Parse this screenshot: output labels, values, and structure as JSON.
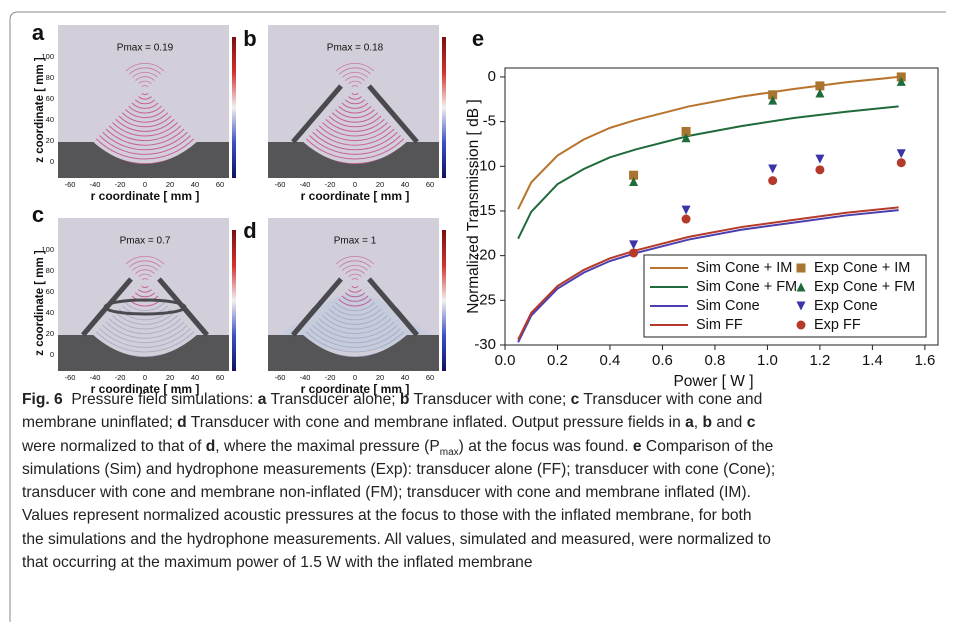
{
  "panels": [
    {
      "label": "a",
      "pmax": "Pmax = 0.19",
      "yticks": [
        0,
        20,
        40,
        60,
        80,
        100
      ],
      "ylabel": "z coordinate [ mm ]",
      "xticks": [
        -60,
        -40,
        -20,
        0,
        20,
        40,
        60
      ],
      "xlabel": "r coordinate [ mm ]"
    },
    {
      "label": "b",
      "pmax": "Pmax = 0.18",
      "xticks": [
        -60,
        -40,
        -20,
        0,
        20,
        40,
        60
      ],
      "xlabel": "r coordinate [ mm ]"
    },
    {
      "label": "c",
      "pmax": "Pmax = 0.7",
      "yticks": [
        0,
        20,
        40,
        60,
        80,
        100
      ],
      "ylabel": "z coordinate [ mm ]",
      "xticks": [
        -60,
        -40,
        -20,
        0,
        20,
        40,
        60
      ],
      "xlabel": "r coordinate [ mm ]"
    },
    {
      "label": "d",
      "pmax": "Pmax = 1",
      "xticks": [
        -60,
        -40,
        -20,
        0,
        20,
        40,
        60
      ],
      "xlabel": "r coordinate [ mm ]"
    }
  ],
  "chart_data": {
    "type": "line",
    "title": "e",
    "x_label": "Power [ W ]",
    "y_label": "Normalized Transmission [ dB ]",
    "xlim": [
      0,
      1.65
    ],
    "ylim": [
      -30,
      1
    ],
    "xticks": [
      {
        "value": 0,
        "label": "0.0"
      },
      0.2,
      0.4,
      0.6,
      0.8,
      {
        "value": 1,
        "label": "1.0"
      },
      1.2,
      1.4,
      1.6
    ],
    "yticks": [
      -30,
      -25,
      -20,
      -15,
      -10,
      -5,
      0
    ],
    "legend": "lower right",
    "series": [
      {
        "name": "Sim Cone + IM",
        "color": "#b8732e",
        "kind": "line",
        "x": [
          0.05,
          0.1,
          0.2,
          0.3,
          0.4,
          0.5,
          0.7,
          0.9,
          1.1,
          1.3,
          1.5
        ],
        "values": [
          -14.8,
          -11.8,
          -8.8,
          -7.0,
          -5.7,
          -4.8,
          -3.3,
          -2.2,
          -1.35,
          -0.6,
          0
        ]
      },
      {
        "name": "Sim Cone + FM",
        "color": "#1f6b3b",
        "kind": "line",
        "x": [
          0.05,
          0.1,
          0.2,
          0.3,
          0.4,
          0.5,
          0.7,
          0.9,
          1.1,
          1.3,
          1.5
        ],
        "values": [
          -18.1,
          -15.1,
          -12.0,
          -10.3,
          -9.0,
          -8.1,
          -6.6,
          -5.5,
          -4.6,
          -3.9,
          -3.3
        ]
      },
      {
        "name": "Sim Cone",
        "color": "#4b3fb0",
        "kind": "line",
        "x": [
          0.05,
          0.1,
          0.2,
          0.3,
          0.4,
          0.5,
          0.7,
          0.9,
          1.1,
          1.3,
          1.5
        ],
        "values": [
          -29.7,
          -26.7,
          -23.7,
          -21.9,
          -20.6,
          -19.7,
          -18.2,
          -17.1,
          -16.3,
          -15.5,
          -14.9
        ]
      },
      {
        "name": "Sim FF",
        "color": "#b53a2b",
        "kind": "line",
        "x": [
          0.05,
          0.1,
          0.2,
          0.3,
          0.4,
          0.5,
          0.7,
          0.9,
          1.1,
          1.3,
          1.5
        ],
        "values": [
          -29.4,
          -26.4,
          -23.4,
          -21.6,
          -20.3,
          -19.4,
          -17.9,
          -16.8,
          -16.0,
          -15.2,
          -14.6
        ]
      },
      {
        "name": "Exp Cone + IM",
        "color": "#a8742f",
        "kind": "marker",
        "marker": "square",
        "x": [
          0.49,
          0.69,
          1.02,
          1.2,
          1.51
        ],
        "values": [
          -11.0,
          -6.1,
          -2.0,
          -1.0,
          0
        ]
      },
      {
        "name": "Exp Cone + FM",
        "color": "#1f6b3b",
        "kind": "marker",
        "marker": "triangle-up",
        "x": [
          0.49,
          0.69,
          1.02,
          1.2,
          1.51
        ],
        "values": [
          -11.7,
          -6.8,
          -2.6,
          -1.8,
          -0.5
        ]
      },
      {
        "name": "Exp Cone",
        "color": "#3a34a8",
        "kind": "marker",
        "marker": "triangle-down",
        "x": [
          0.49,
          0.69,
          1.02,
          1.2,
          1.51
        ],
        "values": [
          -18.8,
          -14.9,
          -10.3,
          -9.2,
          -8.6
        ]
      },
      {
        "name": "Exp FF",
        "color": "#b53a2b",
        "kind": "marker",
        "marker": "circle",
        "x": [
          0.49,
          0.69,
          1.02,
          1.2,
          1.51
        ],
        "values": [
          -19.7,
          -15.9,
          -11.6,
          -10.4,
          -9.6
        ]
      }
    ]
  },
  "caption": {
    "lines": [
      [
        {
          "text": "Fig. 6",
          "style": "bold"
        },
        {
          "text": "  Pressure field simulations: "
        },
        {
          "text": "a",
          "style": "bold"
        },
        {
          "text": " Transducer alone; "
        },
        {
          "text": "b",
          "style": "bold"
        },
        {
          "text": " Transducer with cone; "
        },
        {
          "text": "c",
          "style": "bold"
        },
        {
          "text": " Transducer with cone and"
        }
      ],
      [
        {
          "text": "membrane uninflated; "
        },
        {
          "text": "d",
          "style": "bold"
        },
        {
          "text": " Transducer with cone and membrane inflated. Output pressure fields in "
        },
        {
          "text": "a",
          "style": "bold"
        },
        {
          "text": ", "
        },
        {
          "text": "b",
          "style": "bold"
        },
        {
          "text": " and "
        },
        {
          "text": "c",
          "style": "bold"
        }
      ],
      [
        {
          "text": "were normalized to that of "
        },
        {
          "text": "d",
          "style": "bold"
        },
        {
          "text": ", where the maximal pressure (P"
        },
        {
          "text": "max",
          "style": "sub"
        },
        {
          "text": ") at the focus was found. "
        },
        {
          "text": "e",
          "style": "bold"
        },
        {
          "text": " Comparison of the"
        }
      ],
      [
        {
          "text": "simulations (Sim) and hydrophone measurements (Exp): transducer alone (FF); transducer with cone (Cone);"
        }
      ],
      [
        {
          "text": "transducer with cone and membrane non-inflated (FM); transducer with cone and membrane inflated (IM)."
        }
      ],
      [
        {
          "text": "Values represent normalized acoustic pressures at the focus to those with the inflated membrane, for both"
        }
      ],
      [
        {
          "text": "the simulations and the hydrophone measurements. All values, simulated and measured, were normalized to"
        }
      ],
      [
        {
          "text": "that occurring at the maximum power of 1.5 W with the inflated membrane"
        }
      ]
    ]
  }
}
